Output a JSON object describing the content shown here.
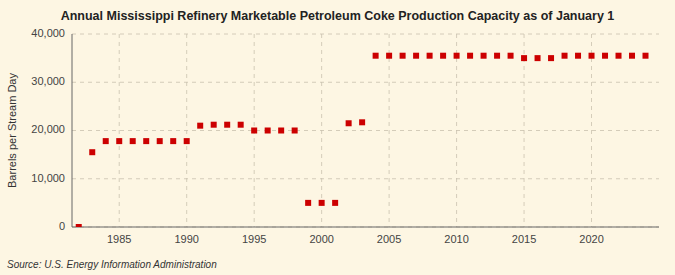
{
  "chart_data": {
    "type": "scatter",
    "title": "Annual Mississippi Refinery Marketable Petroleum Coke Production Capacity as of January 1",
    "y_label": "Barrels per Stream Day",
    "annotations": [
      "Source: U.S. Energy Information Administration"
    ],
    "x": [
      1982,
      1983,
      1984,
      1985,
      1986,
      1987,
      1988,
      1989,
      1990,
      1991,
      1992,
      1993,
      1994,
      1995,
      1996,
      1997,
      1998,
      1999,
      2000,
      2001,
      2002,
      2003,
      2004,
      2005,
      2006,
      2007,
      2008,
      2009,
      2010,
      2011,
      2012,
      2013,
      2014,
      2015,
      2016,
      2017,
      2018,
      2019,
      2020,
      2021,
      2022,
      2023,
      2024
    ],
    "values": [
      0,
      15500,
      17800,
      17800,
      17800,
      17800,
      17800,
      17800,
      17800,
      21000,
      21200,
      21200,
      21200,
      20000,
      20000,
      20000,
      20000,
      5000,
      5000,
      5000,
      21500,
      21700,
      35500,
      35500,
      35500,
      35500,
      35500,
      35500,
      35500,
      35500,
      35500,
      35500,
      35500,
      35000,
      35000,
      35000,
      35500,
      35500,
      35500,
      35500,
      35500,
      35500,
      35500
    ],
    "color": "#cc0000",
    "marker": "square",
    "xlim": [
      1981.5,
      2025
    ],
    "ylim": [
      0,
      40000
    ],
    "xticks": [
      1985,
      1990,
      1995,
      2000,
      2005,
      2010,
      2015,
      2020
    ],
    "yticks": [
      0,
      {
        "value": 10000,
        "label": "10,000"
      },
      {
        "value": 20000,
        "label": "20,000"
      },
      {
        "value": 30000,
        "label": "30,000"
      },
      {
        "value": 40000,
        "label": "40,000"
      }
    ],
    "grid": true
  }
}
